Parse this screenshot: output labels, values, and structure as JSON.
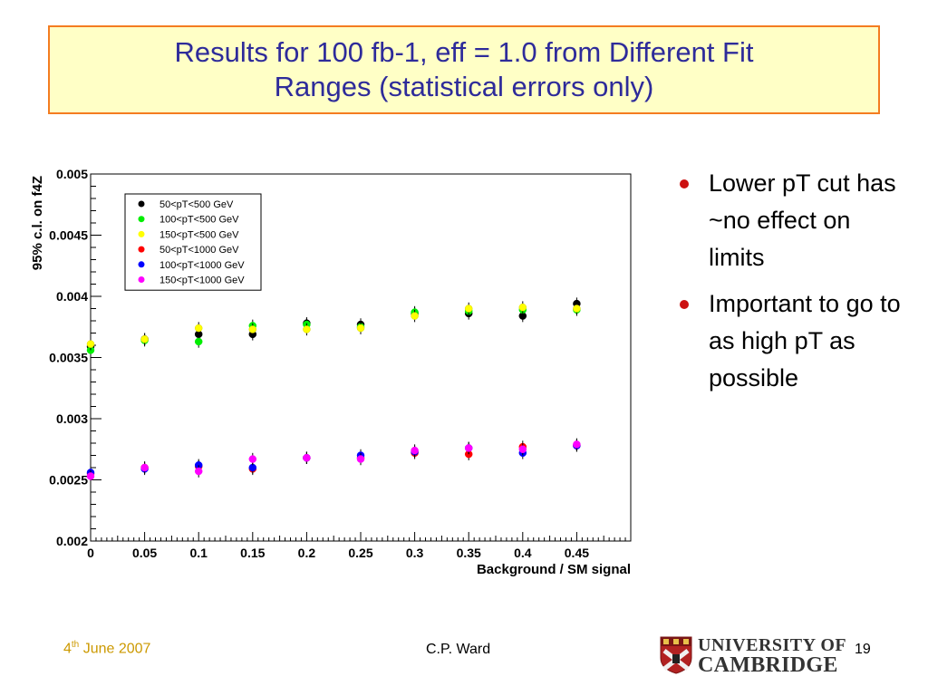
{
  "title": {
    "line1": "Results for 100 fb-1, eff = 1.0 from Different Fit",
    "line2": "Ranges (statistical errors only)"
  },
  "bullets": [
    "Lower pT cut has ~no effect on limits",
    "Important to go to as high pT as possible"
  ],
  "footer": {
    "date_day": "4",
    "date_sup": "th",
    "date_rest": " June 2007",
    "author": "C.P. Ward",
    "page": "19",
    "logo_line1": "UNIVERSITY OF",
    "logo_line2": "CAMBRIDGE"
  },
  "colors": {
    "title_bg": "#ffffc6",
    "title_border": "#f47c20",
    "title_text": "#2e2b9a",
    "bullet": "#cc1111",
    "footer_date": "#cc9900"
  },
  "chart_data": {
    "type": "scatter",
    "xlabel": "Background / SM signal",
    "ylabel": "95% c.l. on f4Z",
    "xlim": [
      0,
      0.5
    ],
    "ylim": [
      0.002,
      0.005
    ],
    "xticks": [
      "0",
      "0.05",
      "0.1",
      "0.15",
      "0.2",
      "0.25",
      "0.3",
      "0.35",
      "0.4",
      "0.45"
    ],
    "yticks": [
      "0.002",
      "0.0025",
      "0.003",
      "0.0035",
      "0.004",
      "0.0045",
      "0.005"
    ],
    "grid": false,
    "legend_position": "top-left",
    "x": [
      0,
      0.05,
      0.1,
      0.15,
      0.2,
      0.25,
      0.3,
      0.35,
      0.4,
      0.45
    ],
    "series": [
      {
        "name": "50<pT<500 GeV",
        "color": "#000000",
        "values": [
          0.00359,
          0.00365,
          0.00369,
          0.00369,
          0.00378,
          0.00377,
          0.00386,
          0.00386,
          0.00384,
          0.00394
        ]
      },
      {
        "name": "100<pT<500 GeV",
        "color": "#00ee00",
        "values": [
          0.00356,
          0.00364,
          0.00363,
          0.00376,
          0.00377,
          0.00375,
          0.00387,
          0.00388,
          0.00389,
          0.00389
        ]
      },
      {
        "name": "150<pT<500 GeV",
        "color": "#ffff00",
        "values": [
          0.00361,
          0.00365,
          0.00374,
          0.00373,
          0.00373,
          0.00374,
          0.00384,
          0.0039,
          0.00391,
          0.0039
        ]
      },
      {
        "name": "50<pT<1000 GeV",
        "color": "#ff0000",
        "values": [
          0.00255,
          0.0026,
          0.00261,
          0.00259,
          0.00268,
          0.00268,
          0.00272,
          0.00271,
          0.00277,
          0.00278
        ]
      },
      {
        "name": "100<pT<1000 GeV",
        "color": "#0000ff",
        "values": [
          0.00256,
          0.00259,
          0.00262,
          0.0026,
          0.00268,
          0.0027,
          0.00273,
          0.00276,
          0.00272,
          0.00278
        ]
      },
      {
        "name": "150<pT<1000 GeV",
        "color": "#ff00ff",
        "values": [
          0.00253,
          0.0026,
          0.00257,
          0.00267,
          0.00268,
          0.00267,
          0.00274,
          0.00276,
          0.00275,
          0.00279
        ]
      }
    ],
    "error": 5e-05
  }
}
